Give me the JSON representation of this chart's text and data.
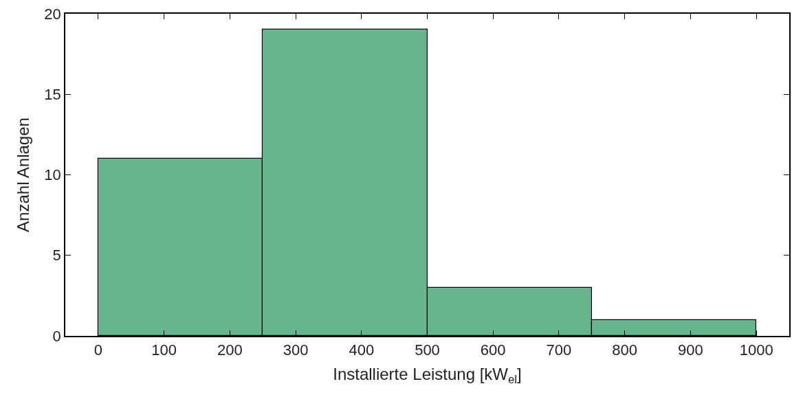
{
  "chart_data": {
    "type": "histogram",
    "xlabel": "Installierte Leistung [kW$_{el}$]",
    "ylabel": "Anzahl Anlagen",
    "bins": [
      0,
      250,
      500,
      750,
      1000
    ],
    "values": [
      11,
      19,
      3,
      1
    ],
    "color": "#66b58e",
    "xlim": [
      -50,
      1050
    ],
    "ylim": [
      0,
      20
    ],
    "xticks": [
      0,
      100,
      200,
      300,
      400,
      500,
      600,
      700,
      800,
      900,
      1000
    ],
    "yticks": [
      0,
      5,
      10,
      15,
      20
    ]
  }
}
